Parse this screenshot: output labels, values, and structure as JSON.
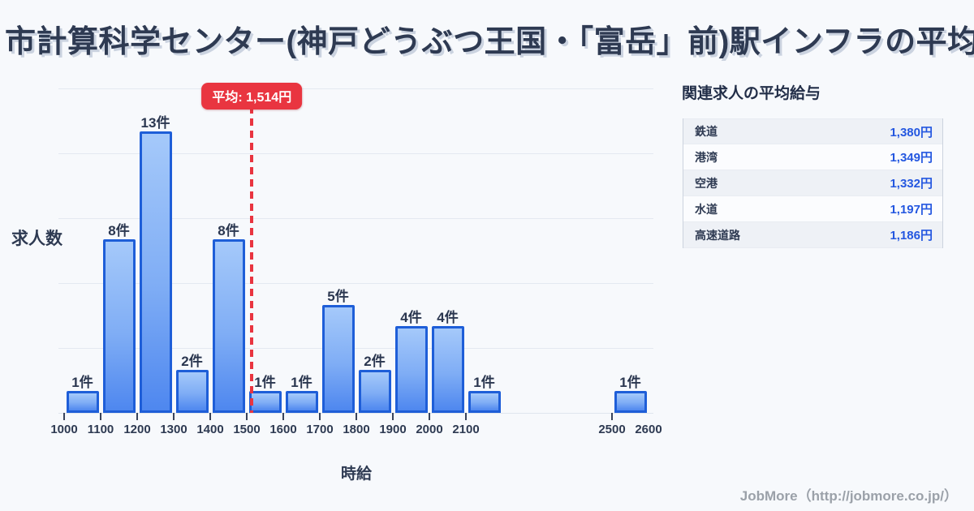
{
  "title": "市計算科学センター(神戸どうぶつ王国・「富岳」前)駅インフラの平均時給",
  "chart_data": {
    "type": "bar",
    "title": "市計算科学センター(神戸どうぶつ王国・「富岳」前)駅インフラの平均時給",
    "xlabel": "時給",
    "ylabel": "求人数",
    "bin_width": 100,
    "bins": [
      {
        "start": 1000,
        "count": 1,
        "label": "1件"
      },
      {
        "start": 1100,
        "count": 8,
        "label": "8件"
      },
      {
        "start": 1200,
        "count": 13,
        "label": "13件"
      },
      {
        "start": 1300,
        "count": 2,
        "label": "2件"
      },
      {
        "start": 1400,
        "count": 8,
        "label": "8件"
      },
      {
        "start": 1500,
        "count": 1,
        "label": "1件"
      },
      {
        "start": 1600,
        "count": 1,
        "label": "1件"
      },
      {
        "start": 1700,
        "count": 5,
        "label": "5件"
      },
      {
        "start": 1800,
        "count": 2,
        "label": "2件"
      },
      {
        "start": 1900,
        "count": 4,
        "label": "4件"
      },
      {
        "start": 2000,
        "count": 4,
        "label": "4件"
      },
      {
        "start": 2100,
        "count": 1,
        "label": "1件"
      },
      {
        "start": 2500,
        "count": 1,
        "label": "1件"
      }
    ],
    "x_tick_labels": [
      1000,
      1100,
      1200,
      1300,
      1400,
      1500,
      1600,
      1700,
      1800,
      1900,
      2000,
      2100,
      2500,
      2600
    ],
    "x_tick_marks": [
      1000,
      1100,
      1200,
      1300,
      1400,
      1500,
      1600,
      1700,
      1800,
      1900,
      2000,
      2100,
      2500
    ],
    "ylim": [
      0,
      15
    ],
    "grid_every": 3,
    "grid": true,
    "legend": "none",
    "average_line": {
      "value": 1514,
      "label": "平均: 1,514円",
      "color": "#e93540"
    }
  },
  "side_panel": {
    "heading": "関連求人の平均給与",
    "rows": [
      {
        "label": "鉄道",
        "value": "1,380円"
      },
      {
        "label": "港湾",
        "value": "1,349円"
      },
      {
        "label": "空港",
        "value": "1,332円"
      },
      {
        "label": "水道",
        "value": "1,197円"
      },
      {
        "label": "高速道路",
        "value": "1,186円"
      }
    ]
  },
  "footer": {
    "credit": "JobMore（http://jobmore.co.jp/）"
  },
  "colors": {
    "background": "#f7f9fc",
    "title_text": "#2e3a52",
    "bar_fill_top": "#a5c9fa",
    "bar_fill_bottom": "#4e87ef",
    "bar_border": "#1e5ed8",
    "average_red": "#e93540",
    "value_blue": "#2457e0",
    "gridline": "#e4e9f1",
    "footer_gray": "#9ba1a9"
  }
}
